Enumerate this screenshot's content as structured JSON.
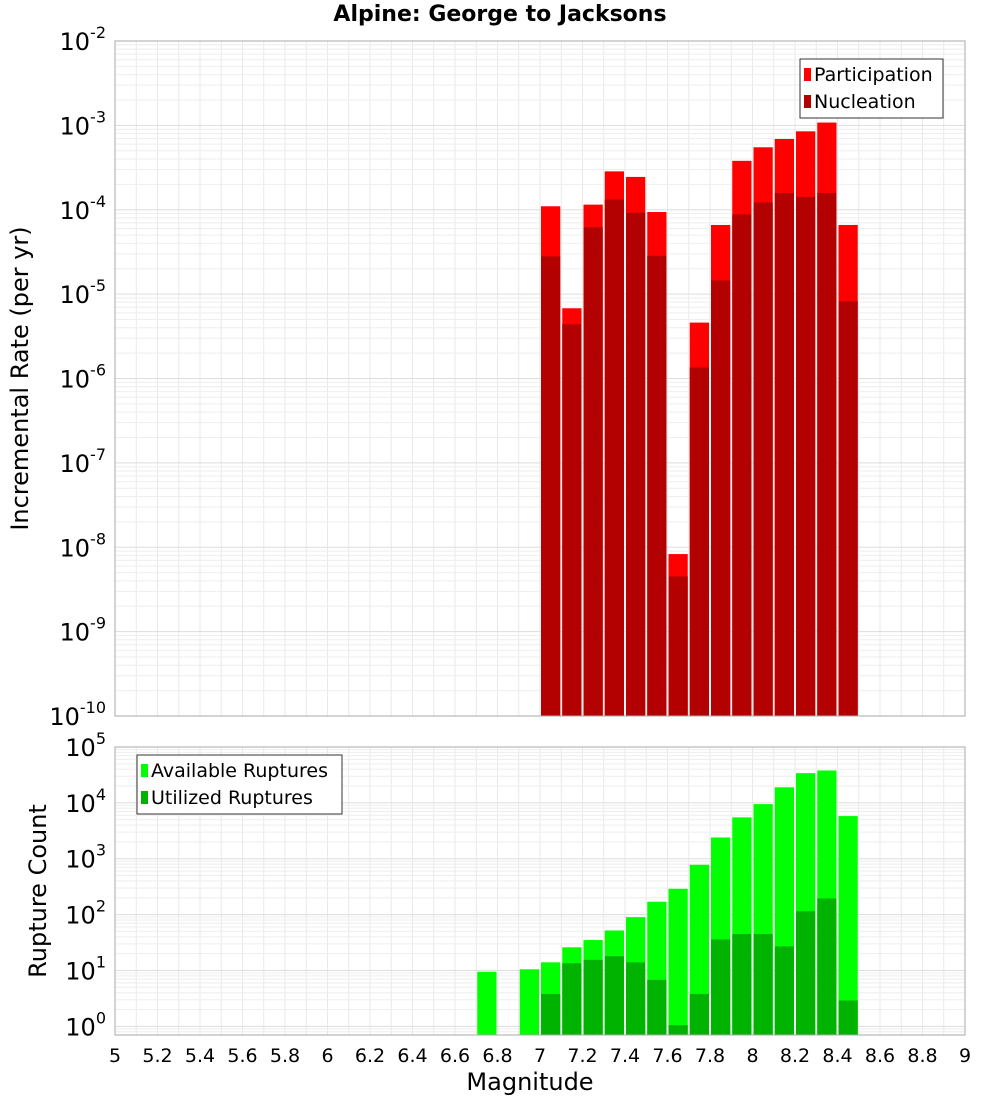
{
  "chart_data": [
    {
      "type": "bar",
      "title": "Alpine: George to Jacksons",
      "xlabel": "",
      "ylabel": "Incremental Rate (per yr)",
      "yscale": "log",
      "ylim": [
        1e-10,
        0.01
      ],
      "xlim": [
        5,
        9
      ],
      "grid": true,
      "legend_position": "top-right",
      "bar_width": 0.1,
      "y_ticks": [
        {
          "base": "10",
          "exp": "-10"
        },
        {
          "base": "10",
          "exp": "-9"
        },
        {
          "base": "10",
          "exp": "-8"
        },
        {
          "base": "10",
          "exp": "-7"
        },
        {
          "base": "10",
          "exp": "-6"
        },
        {
          "base": "10",
          "exp": "-5"
        },
        {
          "base": "10",
          "exp": "-4"
        },
        {
          "base": "10",
          "exp": "-3"
        },
        {
          "base": "10",
          "exp": "-2"
        }
      ],
      "x": [
        7.05,
        7.15,
        7.25,
        7.35,
        7.45,
        7.55,
        7.65,
        7.75,
        7.85,
        7.95,
        8.05,
        8.15,
        8.25,
        8.35,
        8.45
      ],
      "series": [
        {
          "name": "Participation",
          "color": "#ff0000",
          "values": [
            0.00011,
            6.8e-06,
            0.000115,
            0.000285,
            0.000245,
            9.4e-05,
            8.3e-09,
            4.6e-06,
            6.6e-05,
            0.00038,
            0.00055,
            0.00069,
            0.00085,
            0.00108,
            6.6e-05
          ]
        },
        {
          "name": "Nucleation",
          "color": "#b30000",
          "values": [
            2.8e-05,
            4.4e-06,
            6.2e-05,
            0.000132,
            9.2e-05,
            2.85e-05,
            4.5e-09,
            1.35e-06,
            1.45e-05,
            8.8e-05,
            0.000122,
            0.000158,
            0.000142,
            0.000158,
            8.2e-06
          ]
        }
      ]
    },
    {
      "type": "bar",
      "title": "",
      "xlabel": "Magnitude",
      "ylabel": "Rupture Count",
      "yscale": "log",
      "ylim": [
        0.7,
        100000
      ],
      "xlim": [
        5,
        9
      ],
      "grid": true,
      "legend_position": "top-left",
      "bar_width": 0.1,
      "y_ticks": [
        {
          "base": "10",
          "exp": "0"
        },
        {
          "base": "10",
          "exp": "1"
        },
        {
          "base": "10",
          "exp": "2"
        },
        {
          "base": "10",
          "exp": "3"
        },
        {
          "base": "10",
          "exp": "4"
        },
        {
          "base": "10",
          "exp": "5"
        }
      ],
      "x_ticks": [
        "5",
        "5.2",
        "5.4",
        "5.6",
        "5.8",
        "6",
        "6.2",
        "6.4",
        "6.6",
        "6.8",
        "7",
        "7.2",
        "7.4",
        "7.6",
        "7.8",
        "8",
        "8.2",
        "8.4",
        "8.6",
        "8.8",
        "9"
      ],
      "x": [
        6.75,
        6.95,
        7.05,
        7.15,
        7.25,
        7.35,
        7.45,
        7.55,
        7.65,
        7.75,
        7.85,
        7.95,
        8.05,
        8.15,
        8.25,
        8.35,
        8.45
      ],
      "series": [
        {
          "name": "Available Ruptures",
          "color": "#00ff00",
          "values": [
            9.5,
            10.5,
            14,
            26,
            35,
            52,
            90,
            170,
            290,
            780,
            2400,
            5500,
            9500,
            19000,
            34000,
            38000,
            5800
          ]
        },
        {
          "name": "Utilized Ruptures",
          "color": "#00b300",
          "values": [
            null,
            null,
            3.8,
            13.5,
            15.5,
            18,
            14,
            6.8,
            1.05,
            3.8,
            36,
            45,
            45,
            27,
            115,
            195,
            2.9
          ]
        }
      ]
    }
  ]
}
